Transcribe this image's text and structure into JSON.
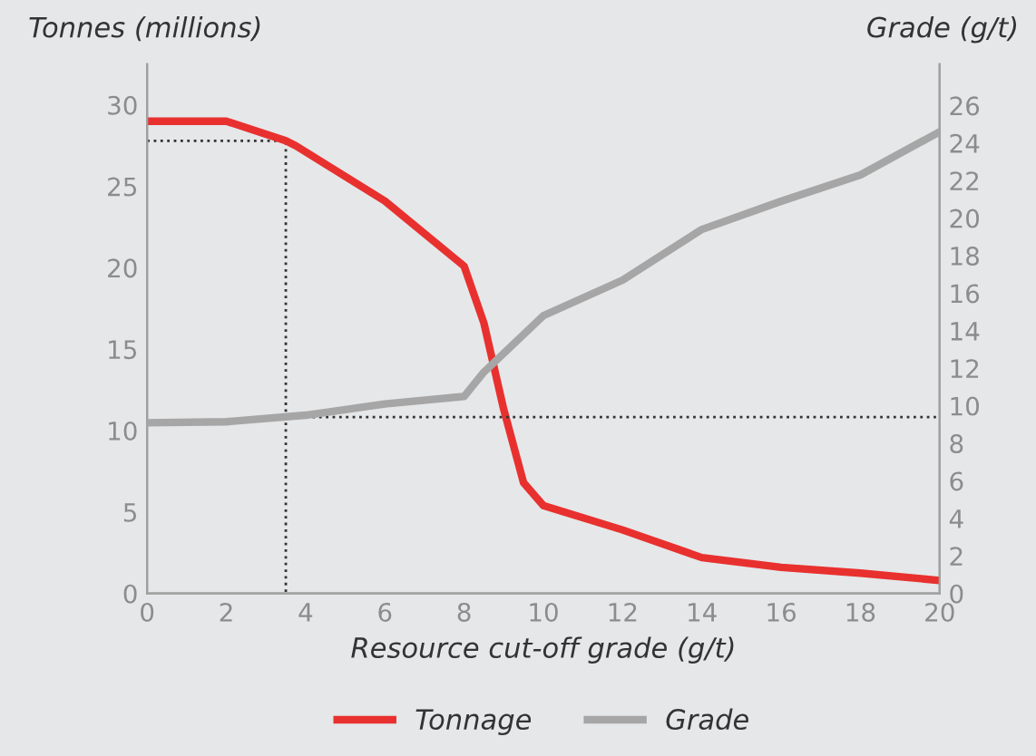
{
  "chart_data": {
    "type": "line",
    "xlabel": "Resource cut-off grade (g/t)",
    "ylabel": "Tonnes (millions)",
    "y2label": "Grade (g/t)",
    "xlim": [
      0,
      20
    ],
    "xticks": [
      0,
      2,
      4,
      6,
      8,
      10,
      12,
      14,
      16,
      18,
      20
    ],
    "ylim": [
      0,
      32.5
    ],
    "yticks": [
      0,
      5,
      10,
      15,
      20,
      25,
      30
    ],
    "y2lim": [
      0,
      28.2
    ],
    "y2ticks": [
      0,
      2,
      4,
      6,
      8,
      10,
      12,
      14,
      16,
      18,
      20,
      22,
      24,
      26
    ],
    "legend": "bottom",
    "grid": false,
    "marker": "none",
    "series": [
      {
        "name": "Tonnage",
        "color": "#e8312f",
        "x": [
          0,
          2,
          3.5,
          3.75,
          6,
          8,
          8.5,
          9,
          9.5,
          10,
          12,
          14,
          16,
          18,
          20
        ],
        "values": [
          29.0,
          29.0,
          27.8,
          27.5,
          24.1,
          20.1,
          16.6,
          11.3,
          6.8,
          5.4,
          3.9,
          2.2,
          1.6,
          1.25,
          0.8
        ]
      },
      {
        "name": "Grade",
        "color": "#a6a6a6",
        "axis": "y2",
        "x": [
          0,
          2,
          4,
          6,
          8,
          8.5,
          9,
          9.5,
          10,
          12,
          14,
          16,
          18,
          20
        ],
        "values": [
          9.1,
          9.15,
          9.5,
          10.1,
          10.5,
          11.8,
          12.8,
          13.8,
          14.8,
          16.7,
          19.4,
          20.9,
          22.3,
          24.6
        ]
      },
      {
        "color": "#333333",
        "line_style": "dotted",
        "x": [
          0,
          3.5,
          3.5
        ],
        "values": [
          27.8,
          27.8,
          0
        ]
      },
      {
        "color": "#333333",
        "line_style": "dotted",
        "axis": "y2",
        "x": [
          3.5,
          20
        ],
        "values": [
          9.4,
          9.4
        ]
      }
    ]
  }
}
